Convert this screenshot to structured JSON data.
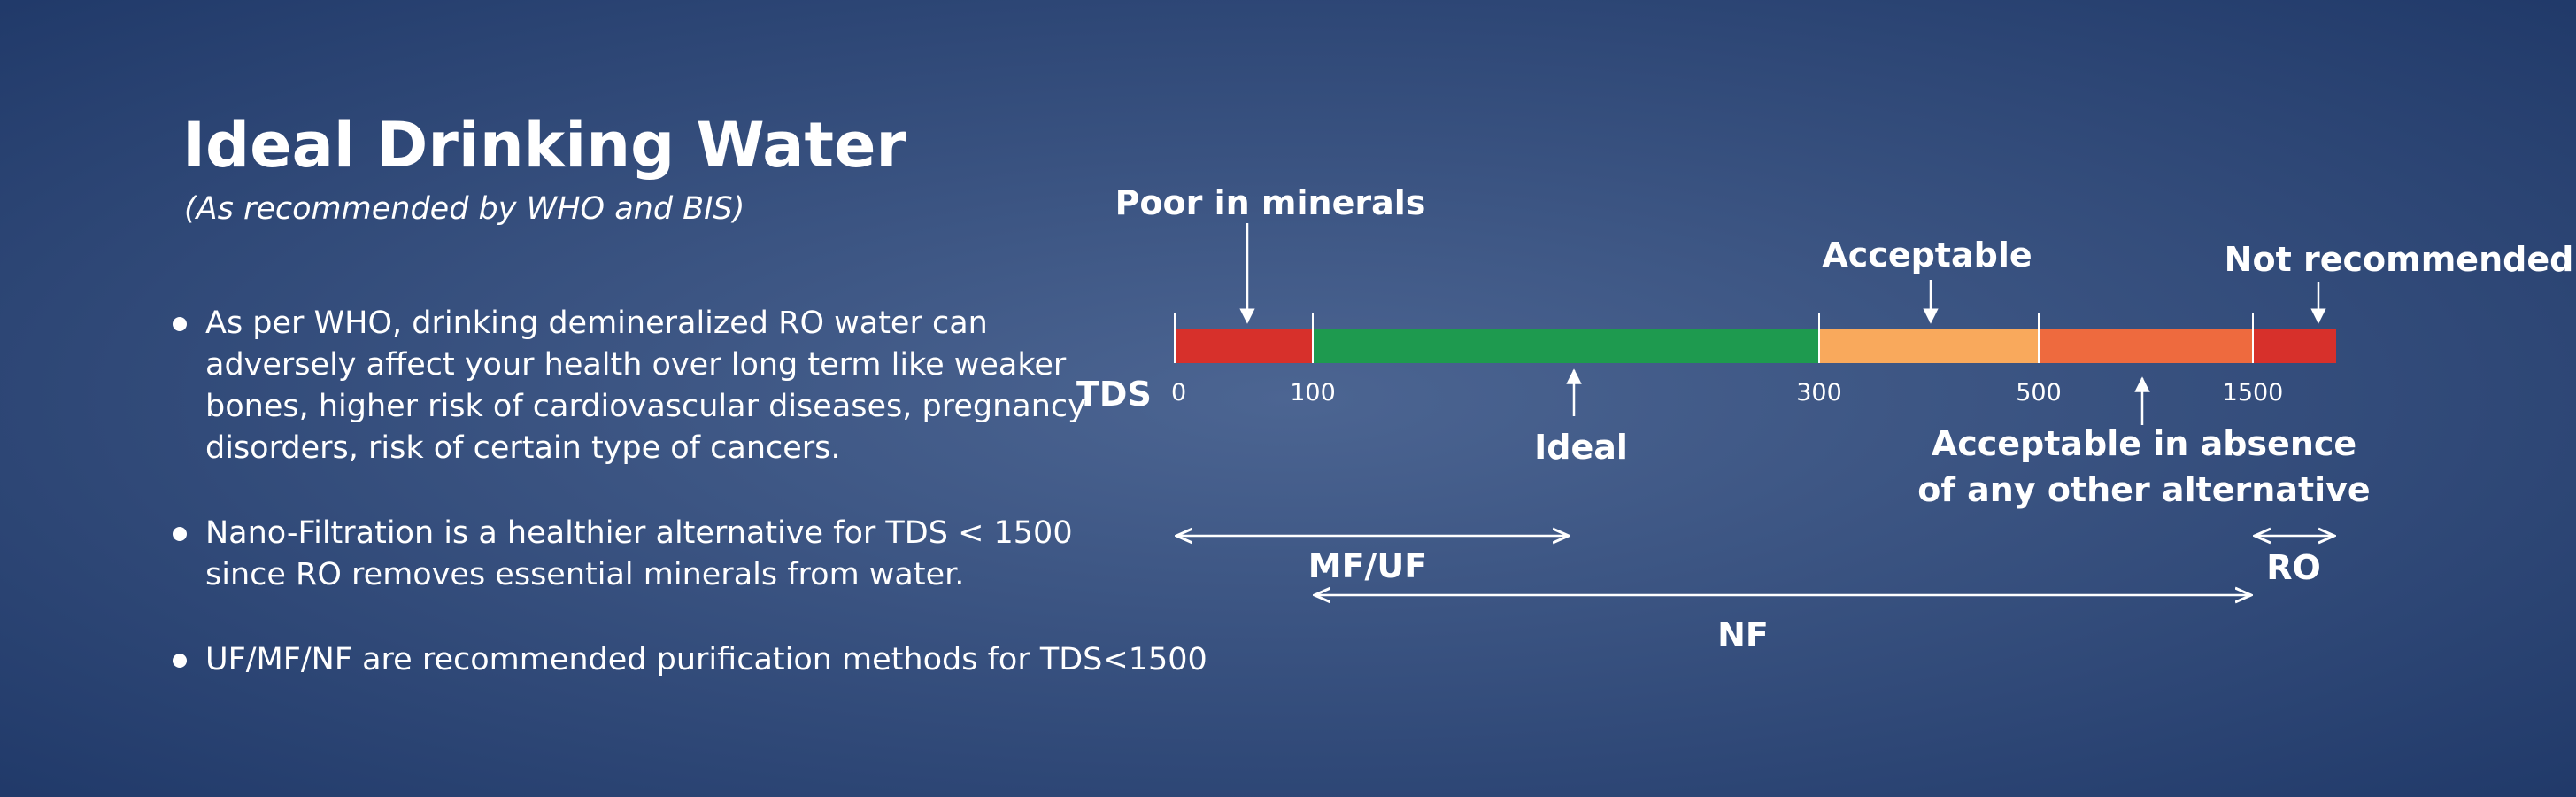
{
  "header": {
    "title": "Ideal Drinking Water",
    "subtitle": "(As recommended by WHO and BIS)"
  },
  "bullets": [
    [
      "As per WHO, drinking demineralized RO water can",
      "adversely affect your health over long term like weaker",
      "bones, higher risk of cardiovascular diseases, pregnancy",
      "disorders, risk of certain type of cancers."
    ],
    [
      "Nano-Filtration is a healthier alternative for TDS < 1500",
      "since RO removes essential minerals from water."
    ],
    [
      "UF/MF/NF are recommended purification methods for TDS<1500"
    ]
  ],
  "scale": {
    "label": "TDS",
    "ticks": [
      "0",
      "100",
      "300",
      "500",
      "1500"
    ],
    "annotations": {
      "poor": "Poor in minerals",
      "ideal": "Ideal",
      "acceptable": "Acceptable",
      "absence": [
        "Acceptable in absence",
        "of any other alternative"
      ],
      "not_recommended": "Not recommended"
    }
  },
  "ranges": {
    "mf_uf": "MF/UF",
    "nf": "NF",
    "ro": "RO"
  }
}
